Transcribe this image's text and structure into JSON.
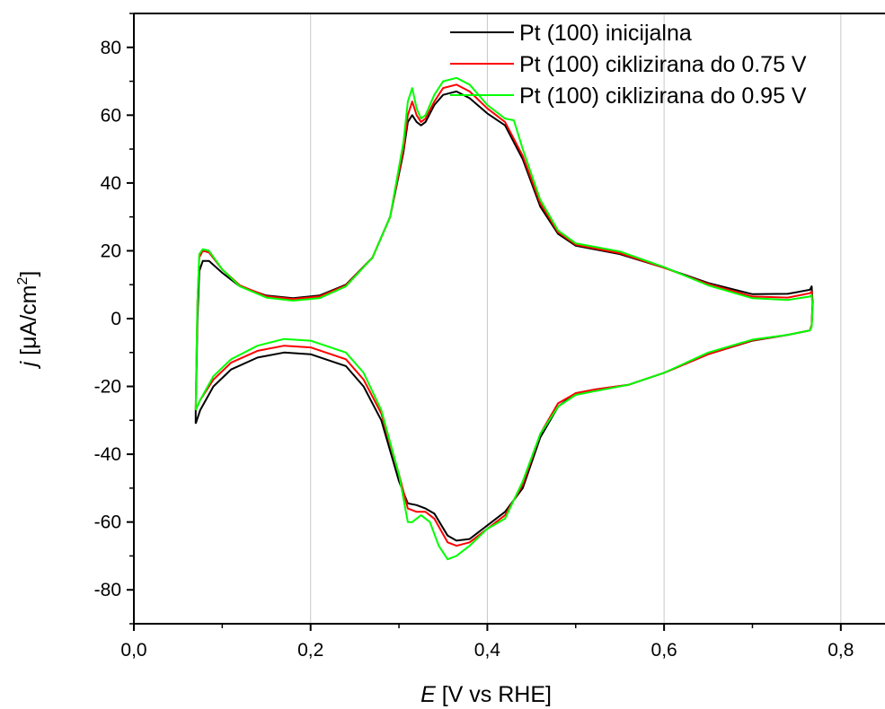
{
  "chart_data": {
    "type": "line",
    "xlabel_italic": "E",
    "xlabel_rest": " [V vs RHE]",
    "ylabel_italic": "j",
    "ylabel_rest": " [μA/cm",
    "ylabel_sup": "2",
    "ylabel_close": "]",
    "xlim": [
      0.0,
      0.85
    ],
    "ylim": [
      -90,
      90
    ],
    "grid": "vertical",
    "legend_position": "top-right",
    "x_ticks": [
      {
        "value": 0.0,
        "label": "0,0"
      },
      {
        "value": 0.2,
        "label": "0,2"
      },
      {
        "value": 0.4,
        "label": "0,4"
      },
      {
        "value": 0.6,
        "label": "0,6"
      },
      {
        "value": 0.8,
        "label": "0,8"
      }
    ],
    "y_ticks": [
      {
        "value": -80,
        "label": "-80"
      },
      {
        "value": -60,
        "label": "-60"
      },
      {
        "value": -40,
        "label": "-40"
      },
      {
        "value": -20,
        "label": "-20"
      },
      {
        "value": 0,
        "label": "0"
      },
      {
        "value": 20,
        "label": "20"
      },
      {
        "value": 40,
        "label": "40"
      },
      {
        "value": 60,
        "label": "60"
      },
      {
        "value": 80,
        "label": "80"
      }
    ],
    "series": [
      {
        "name": "Pt (100) inicijalna",
        "color": "#000000",
        "points": [
          [
            0.07,
            -31
          ],
          [
            0.07,
            -28
          ],
          [
            0.072,
            0
          ],
          [
            0.074,
            14
          ],
          [
            0.078,
            17
          ],
          [
            0.085,
            17
          ],
          [
            0.1,
            13.5
          ],
          [
            0.12,
            9.5
          ],
          [
            0.15,
            6.8
          ],
          [
            0.18,
            6.0
          ],
          [
            0.21,
            6.8
          ],
          [
            0.24,
            10
          ],
          [
            0.27,
            18
          ],
          [
            0.29,
            30
          ],
          [
            0.305,
            49
          ],
          [
            0.31,
            58
          ],
          [
            0.315,
            60
          ],
          [
            0.32,
            58
          ],
          [
            0.325,
            57
          ],
          [
            0.33,
            58
          ],
          [
            0.34,
            63
          ],
          [
            0.35,
            66
          ],
          [
            0.365,
            67
          ],
          [
            0.38,
            65
          ],
          [
            0.4,
            60.5
          ],
          [
            0.42,
            57
          ],
          [
            0.44,
            47
          ],
          [
            0.46,
            33
          ],
          [
            0.48,
            25
          ],
          [
            0.5,
            21.5
          ],
          [
            0.55,
            19
          ],
          [
            0.6,
            15
          ],
          [
            0.65,
            10.5
          ],
          [
            0.7,
            7.2
          ],
          [
            0.74,
            7.3
          ],
          [
            0.765,
            8.5
          ],
          [
            0.767,
            9.5
          ],
          [
            0.768,
            5
          ],
          [
            0.767,
            -2
          ],
          [
            0.765,
            -3.5
          ],
          [
            0.74,
            -4.8
          ],
          [
            0.7,
            -6.5
          ],
          [
            0.65,
            -10.5
          ],
          [
            0.6,
            -16
          ],
          [
            0.56,
            -19.5
          ],
          [
            0.52,
            -21
          ],
          [
            0.5,
            -22
          ],
          [
            0.48,
            -26
          ],
          [
            0.46,
            -35
          ],
          [
            0.44,
            -50
          ],
          [
            0.42,
            -57
          ],
          [
            0.4,
            -61
          ],
          [
            0.38,
            -65
          ],
          [
            0.365,
            -65.5
          ],
          [
            0.355,
            -64
          ],
          [
            0.34,
            -57.5
          ],
          [
            0.33,
            -56
          ],
          [
            0.32,
            -55
          ],
          [
            0.31,
            -54.5
          ],
          [
            0.3,
            -48
          ],
          [
            0.28,
            -30
          ],
          [
            0.26,
            -20
          ],
          [
            0.24,
            -14
          ],
          [
            0.2,
            -10.5
          ],
          [
            0.17,
            -10
          ],
          [
            0.14,
            -11.5
          ],
          [
            0.11,
            -15
          ],
          [
            0.09,
            -20
          ],
          [
            0.075,
            -27
          ],
          [
            0.07,
            -31
          ]
        ]
      },
      {
        "name": "Pt (100) ciklizirana do 0.75 V",
        "color": "#ff0000",
        "points": [
          [
            0.07,
            -27
          ],
          [
            0.071,
            -10
          ],
          [
            0.072,
            5
          ],
          [
            0.074,
            18
          ],
          [
            0.078,
            20
          ],
          [
            0.085,
            19.5
          ],
          [
            0.1,
            14.5
          ],
          [
            0.12,
            9.8
          ],
          [
            0.15,
            6.6
          ],
          [
            0.18,
            5.8
          ],
          [
            0.21,
            6.5
          ],
          [
            0.24,
            9.8
          ],
          [
            0.27,
            18
          ],
          [
            0.29,
            30
          ],
          [
            0.305,
            50
          ],
          [
            0.31,
            60
          ],
          [
            0.315,
            64
          ],
          [
            0.32,
            60
          ],
          [
            0.325,
            58
          ],
          [
            0.33,
            59
          ],
          [
            0.34,
            64
          ],
          [
            0.35,
            68
          ],
          [
            0.365,
            69
          ],
          [
            0.38,
            67
          ],
          [
            0.4,
            62
          ],
          [
            0.42,
            58
          ],
          [
            0.44,
            48
          ],
          [
            0.46,
            34
          ],
          [
            0.48,
            25.5
          ],
          [
            0.5,
            21.8
          ],
          [
            0.55,
            19.3
          ],
          [
            0.6,
            15
          ],
          [
            0.65,
            10.2
          ],
          [
            0.7,
            6.5
          ],
          [
            0.74,
            6.2
          ],
          [
            0.765,
            7.5
          ],
          [
            0.767,
            8
          ],
          [
            0.768,
            4
          ],
          [
            0.767,
            -2
          ],
          [
            0.765,
            -3.5
          ],
          [
            0.74,
            -4.8
          ],
          [
            0.7,
            -6.4
          ],
          [
            0.65,
            -10.5
          ],
          [
            0.6,
            -16
          ],
          [
            0.56,
            -19.5
          ],
          [
            0.52,
            -21
          ],
          [
            0.5,
            -22
          ],
          [
            0.48,
            -25
          ],
          [
            0.46,
            -34
          ],
          [
            0.44,
            -49
          ],
          [
            0.42,
            -58
          ],
          [
            0.4,
            -62
          ],
          [
            0.38,
            -66
          ],
          [
            0.365,
            -67
          ],
          [
            0.355,
            -66
          ],
          [
            0.34,
            -59
          ],
          [
            0.33,
            -57
          ],
          [
            0.32,
            -57
          ],
          [
            0.31,
            -56
          ],
          [
            0.3,
            -46
          ],
          [
            0.28,
            -28
          ],
          [
            0.26,
            -18
          ],
          [
            0.24,
            -12
          ],
          [
            0.2,
            -8.5
          ],
          [
            0.17,
            -8
          ],
          [
            0.14,
            -9.5
          ],
          [
            0.11,
            -13
          ],
          [
            0.09,
            -18
          ],
          [
            0.075,
            -24
          ],
          [
            0.07,
            -27
          ]
        ]
      },
      {
        "name": "Pt (100) ciklizirana do 0.95 V",
        "color": "#00ff00",
        "points": [
          [
            0.07,
            -27
          ],
          [
            0.071,
            -10
          ],
          [
            0.072,
            5
          ],
          [
            0.074,
            19
          ],
          [
            0.078,
            20.5
          ],
          [
            0.085,
            20
          ],
          [
            0.1,
            14.5
          ],
          [
            0.12,
            9.5
          ],
          [
            0.15,
            6.2
          ],
          [
            0.18,
            5.3
          ],
          [
            0.21,
            6.0
          ],
          [
            0.24,
            9.5
          ],
          [
            0.27,
            18
          ],
          [
            0.29,
            30
          ],
          [
            0.305,
            52
          ],
          [
            0.31,
            64
          ],
          [
            0.315,
            68
          ],
          [
            0.32,
            62
          ],
          [
            0.325,
            59
          ],
          [
            0.33,
            60
          ],
          [
            0.34,
            66
          ],
          [
            0.35,
            70
          ],
          [
            0.365,
            71
          ],
          [
            0.38,
            69
          ],
          [
            0.4,
            63
          ],
          [
            0.42,
            59
          ],
          [
            0.43,
            58.5
          ],
          [
            0.44,
            50
          ],
          [
            0.46,
            35
          ],
          [
            0.48,
            26
          ],
          [
            0.5,
            22.2
          ],
          [
            0.55,
            19.8
          ],
          [
            0.6,
            15.2
          ],
          [
            0.65,
            9.8
          ],
          [
            0.7,
            6.0
          ],
          [
            0.74,
            5.5
          ],
          [
            0.765,
            6.5
          ],
          [
            0.767,
            7
          ],
          [
            0.768,
            3
          ],
          [
            0.767,
            -2.5
          ],
          [
            0.765,
            -3.5
          ],
          [
            0.74,
            -4.8
          ],
          [
            0.7,
            -6.2
          ],
          [
            0.65,
            -10
          ],
          [
            0.6,
            -16
          ],
          [
            0.56,
            -19.5
          ],
          [
            0.52,
            -21.5
          ],
          [
            0.5,
            -22.5
          ],
          [
            0.48,
            -26
          ],
          [
            0.46,
            -34
          ],
          [
            0.44,
            -48
          ],
          [
            0.42,
            -59
          ],
          [
            0.4,
            -62
          ],
          [
            0.38,
            -67
          ],
          [
            0.365,
            -70
          ],
          [
            0.355,
            -71
          ],
          [
            0.345,
            -67
          ],
          [
            0.335,
            -60
          ],
          [
            0.325,
            -58
          ],
          [
            0.315,
            -60
          ],
          [
            0.31,
            -60
          ],
          [
            0.3,
            -46
          ],
          [
            0.28,
            -27
          ],
          [
            0.26,
            -16
          ],
          [
            0.24,
            -10
          ],
          [
            0.2,
            -6.5
          ],
          [
            0.17,
            -6
          ],
          [
            0.14,
            -8
          ],
          [
            0.11,
            -12
          ],
          [
            0.09,
            -17
          ],
          [
            0.075,
            -24
          ],
          [
            0.07,
            -27
          ]
        ]
      }
    ]
  }
}
